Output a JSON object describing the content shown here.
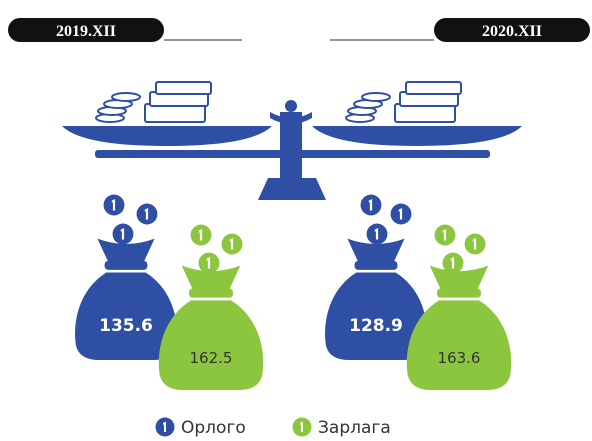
{
  "periods": [
    {
      "label": "2019.XII",
      "income": 135.6,
      "expense": 162.5
    },
    {
      "label": "2020.XII",
      "income": 128.9,
      "expense": 163.6
    }
  ],
  "legend": {
    "income": "Орлого",
    "expense": "Зарлага"
  }
}
